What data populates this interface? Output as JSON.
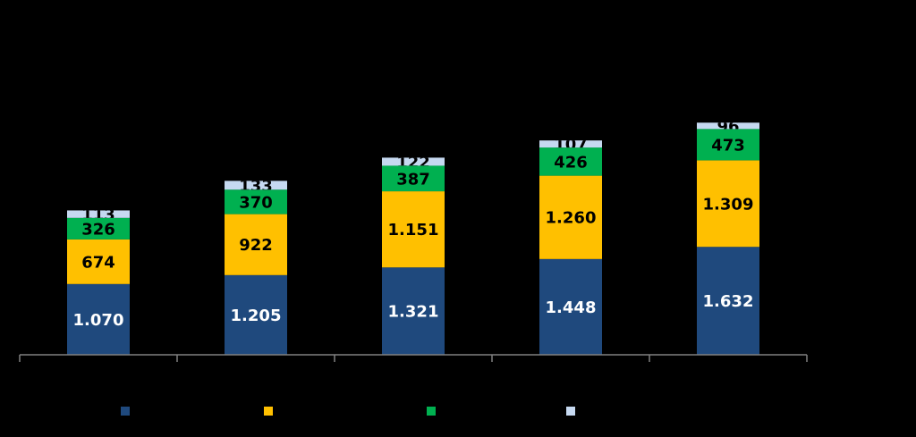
{
  "chart_data": {
    "type": "stacked-bar",
    "categories": [
      null,
      null,
      null,
      null,
      null
    ],
    "ylim": [
      0,
      5000
    ],
    "series": [
      {
        "color": "#1f497d",
        "label_color": "#ffffff",
        "values": [
          1070,
          1205,
          1321,
          1448,
          1632
        ],
        "value_labels": [
          "1.070",
          "1.205",
          "1.321",
          "1.448",
          "1.632"
        ]
      },
      {
        "color": "#ffc000",
        "label_color": "#000000",
        "values": [
          674,
          922,
          1151,
          1260,
          1309
        ],
        "value_labels": [
          "674",
          "922",
          "1.151",
          "1.260",
          "1.309"
        ]
      },
      {
        "color": "#00b050",
        "label_color": "#000000",
        "values": [
          326,
          370,
          387,
          426,
          473
        ]
      },
      {
        "color": "#c6d9f1",
        "label_color": "#000000",
        "values": [
          113,
          133,
          122,
          107,
          96
        ]
      }
    ]
  }
}
